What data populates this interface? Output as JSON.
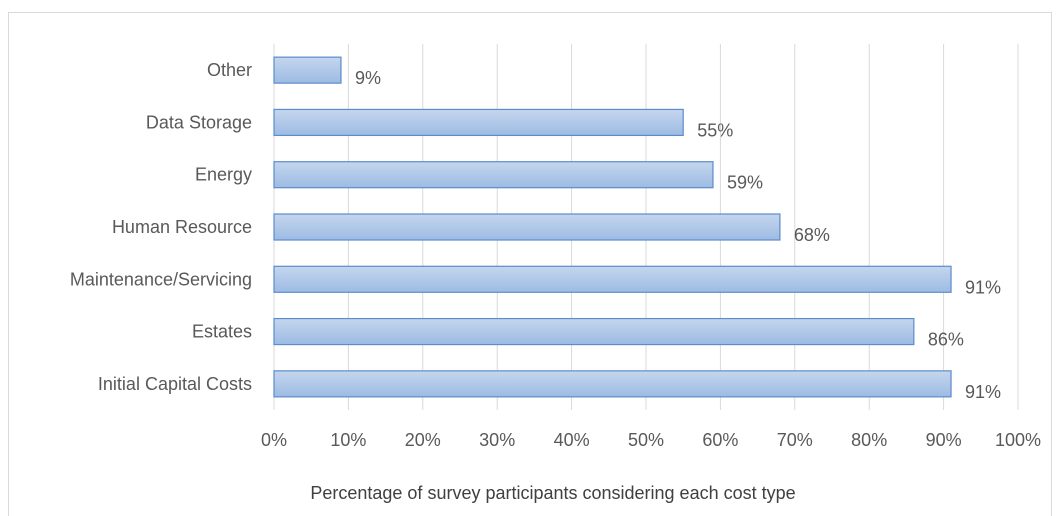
{
  "chart_data": {
    "type": "bar",
    "orientation": "horizontal",
    "categories": [
      "Other",
      "Data Storage",
      "Energy",
      "Human Resource",
      "Maintenance/Servicing",
      "Estates",
      "Initial Capital Costs"
    ],
    "values": [
      9,
      55,
      59,
      68,
      91,
      86,
      91
    ],
    "data_labels": [
      "9%",
      "55%",
      "59%",
      "68%",
      "91%",
      "86%",
      "91%"
    ],
    "xlim": [
      0,
      100
    ],
    "xticks": [
      0,
      10,
      20,
      30,
      40,
      50,
      60,
      70,
      80,
      90,
      100
    ],
    "xtick_labels": [
      "0%",
      "10%",
      "20%",
      "30%",
      "40%",
      "50%",
      "60%",
      "70%",
      "80%",
      "90%",
      "100%"
    ],
    "xlabel": "Percentage of survey participants considering each cost type",
    "ylabel": "",
    "title": "",
    "grid": "vertical",
    "legend": "none",
    "colors": {
      "bar_fill_top": "#c5d6ee",
      "bar_fill_bottom": "#9dbbe3",
      "bar_stroke": "#5b8ccc",
      "grid": "#d9d9d9",
      "text": "#595959"
    }
  }
}
